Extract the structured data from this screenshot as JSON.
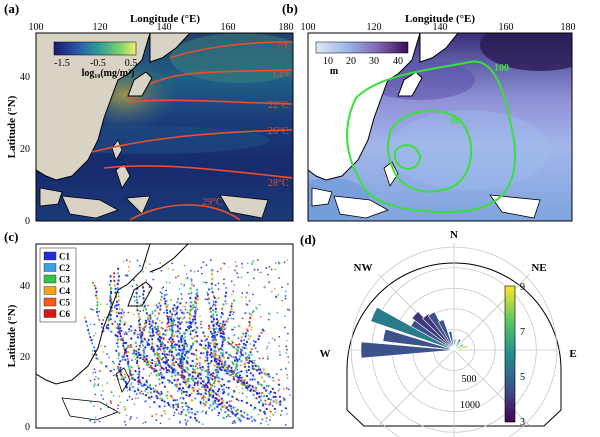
{
  "panels": [
    {
      "label": "(a)",
      "xlabel": "Longitude (°E)",
      "ylabel": "Latitude (°N)",
      "xticks": [
        "100",
        "120",
        "140",
        "160",
        "180"
      ],
      "yticks": [
        "0",
        "20",
        "40"
      ],
      "colorbar": {
        "ticks": [
          "-1.5",
          "-0.5",
          "0.5"
        ],
        "label": "log₁₀(mg/m³)"
      },
      "isotherms": [
        "7°C",
        "13°C",
        "22°C",
        "26°C",
        "28°C",
        "29°C"
      ]
    },
    {
      "label": "(b)",
      "xlabel": "Longitude (°E)",
      "xticks": [
        "100",
        "120",
        "140",
        "160",
        "180"
      ],
      "colorbar": {
        "ticks": [
          "10",
          "20",
          "30",
          "40"
        ],
        "label": "m"
      },
      "contours": [
        "100",
        "90"
      ]
    },
    {
      "label": "(c)",
      "ylabel": "Latitude (°N)",
      "yticks": [
        "0",
        "20",
        "40"
      ],
      "legend": [
        {
          "name": "C1",
          "color": "#1f2fd6"
        },
        {
          "name": "C2",
          "color": "#3aa0e8"
        },
        {
          "name": "C3",
          "color": "#34c24a"
        },
        {
          "name": "C4",
          "color": "#f2a51c"
        },
        {
          "name": "C5",
          "color": "#f25a1e"
        },
        {
          "name": "C6",
          "color": "#d81818"
        }
      ]
    },
    {
      "label": "(d)",
      "directions": [
        "N",
        "NE",
        "E",
        "W",
        "NW"
      ],
      "radial_ticks": [
        "500",
        "1000"
      ],
      "colorbar": {
        "ticks": [
          "3",
          "5",
          "7",
          "9"
        ]
      }
    }
  ],
  "chart_data": [
    {
      "type": "heatmap",
      "title": "",
      "xlabel": "Longitude (°E)",
      "ylabel": "Latitude (°N)",
      "xlim": [
        100,
        180
      ],
      "ylim": [
        0,
        50
      ],
      "grid": false,
      "colorbar": {
        "vmin": -1.5,
        "vmax": 0.5,
        "label": "log₁₀(mg/m³)"
      },
      "isotherms_c": [
        7,
        13,
        22,
        26,
        28,
        29
      ]
    },
    {
      "type": "heatmap",
      "title": "",
      "xlabel": "Longitude (°E)",
      "ylabel": "",
      "xlim": [
        100,
        180
      ],
      "ylim": [
        0,
        50
      ],
      "grid": false,
      "colorbar": {
        "vmin": 5,
        "vmax": 45,
        "label": "m"
      },
      "contour_levels": [
        90,
        100
      ]
    },
    {
      "type": "scatter",
      "title": "",
      "ylabel": "Latitude (°N)",
      "xlim": [
        100,
        180
      ],
      "ylim": [
        0,
        50
      ],
      "legend_placement": "top-left",
      "series": [
        {
          "name": "C1"
        },
        {
          "name": "C2"
        },
        {
          "name": "C3"
        },
        {
          "name": "C4"
        },
        {
          "name": "C5"
        },
        {
          "name": "C6"
        }
      ]
    },
    {
      "type": "bar",
      "subtype": "polar-rose",
      "radial_ticks": [
        500,
        1000
      ],
      "rlim": [
        0,
        1300
      ],
      "colorbar": {
        "vmin": 3,
        "vmax": 9
      },
      "bars": [
        {
          "bearing": 270,
          "value": 1130,
          "color_value": 4.5
        },
        {
          "bearing": 282,
          "value": 870,
          "color_value": 4.5
        },
        {
          "bearing": 294,
          "value": 1070,
          "color_value": 5.5
        },
        {
          "bearing": 304,
          "value": 600,
          "color_value": 4.5
        },
        {
          "bearing": 312,
          "value": 640,
          "color_value": 4.0
        },
        {
          "bearing": 320,
          "value": 540,
          "color_value": 4.0
        },
        {
          "bearing": 328,
          "value": 520,
          "color_value": 4.5
        },
        {
          "bearing": 336,
          "value": 390,
          "color_value": 4.5
        },
        {
          "bearing": 348,
          "value": 230,
          "color_value": 5.0
        },
        {
          "bearing": 5,
          "value": 130,
          "color_value": 6.0
        },
        {
          "bearing": 30,
          "value": 150,
          "color_value": 5.5
        },
        {
          "bearing": 60,
          "value": 130,
          "color_value": 7.0
        },
        {
          "bearing": 75,
          "value": 170,
          "color_value": 8.5
        },
        {
          "bearing": 90,
          "value": 110,
          "color_value": 8.0
        }
      ]
    }
  ]
}
